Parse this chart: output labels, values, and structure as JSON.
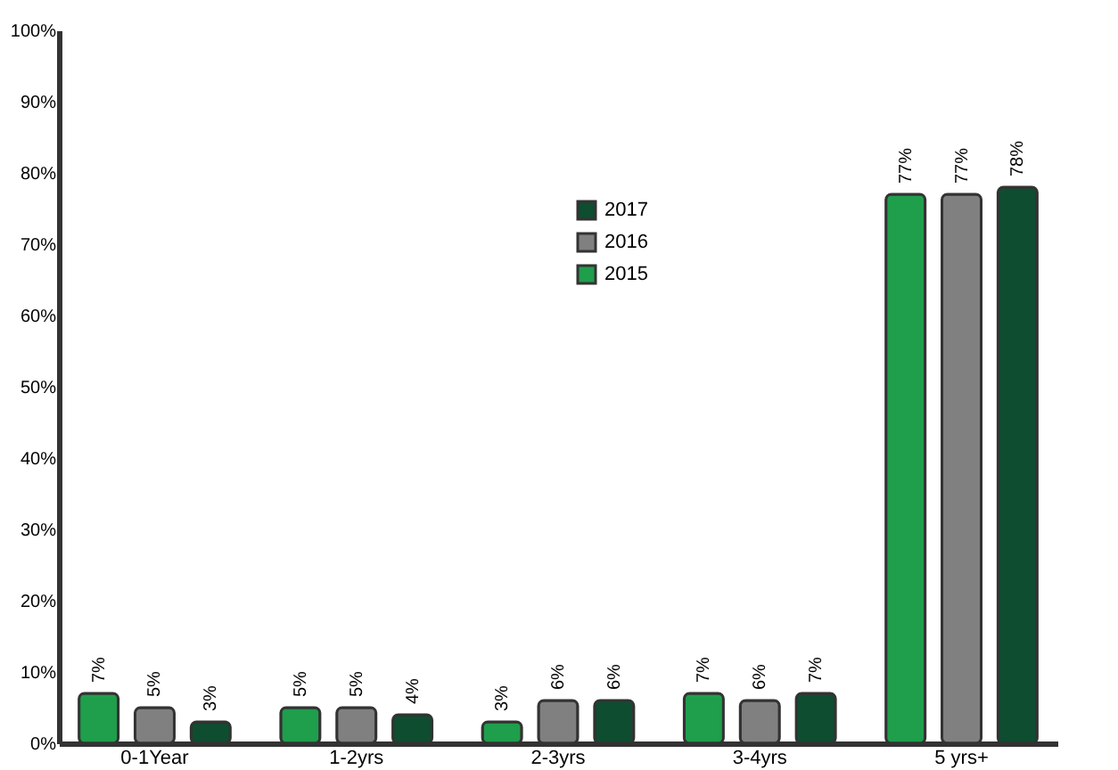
{
  "chart_data": {
    "type": "bar",
    "categories": [
      "0-1Year",
      "1-2yrs",
      "2-3yrs",
      "3-4yrs",
      "5 yrs+"
    ],
    "series": [
      {
        "name": "2015",
        "color": "#1f9e4c",
        "values": [
          7,
          5,
          3,
          7,
          77
        ],
        "value_labels": [
          "7%",
          "5%",
          "3%",
          "7%",
          "77%"
        ]
      },
      {
        "name": "2016",
        "color": "#808080",
        "values": [
          5,
          5,
          6,
          6,
          77
        ],
        "value_labels": [
          "5%",
          "5%",
          "6%",
          "6%",
          "77%"
        ]
      },
      {
        "name": "2017",
        "color": "#0e4d30",
        "values": [
          3,
          4,
          6,
          7,
          78
        ],
        "value_labels": [
          "3%",
          "4%",
          "6%",
          "7%",
          "78%"
        ]
      }
    ],
    "ylim": [
      0,
      100
    ],
    "yticks": [
      {
        "value": 0,
        "label": "0%"
      },
      {
        "value": 10,
        "label": "10%"
      },
      {
        "value": 20,
        "label": "20%"
      },
      {
        "value": 30,
        "label": "30%"
      },
      {
        "value": 40,
        "label": "40%"
      },
      {
        "value": 50,
        "label": "50%"
      },
      {
        "value": 60,
        "label": "60%"
      },
      {
        "value": 70,
        "label": "70%"
      },
      {
        "value": 80,
        "label": "80%"
      },
      {
        "value": 90,
        "label": "90%"
      },
      {
        "value": 100,
        "label": "100%"
      }
    ],
    "grid": false,
    "legend": "top"
  }
}
